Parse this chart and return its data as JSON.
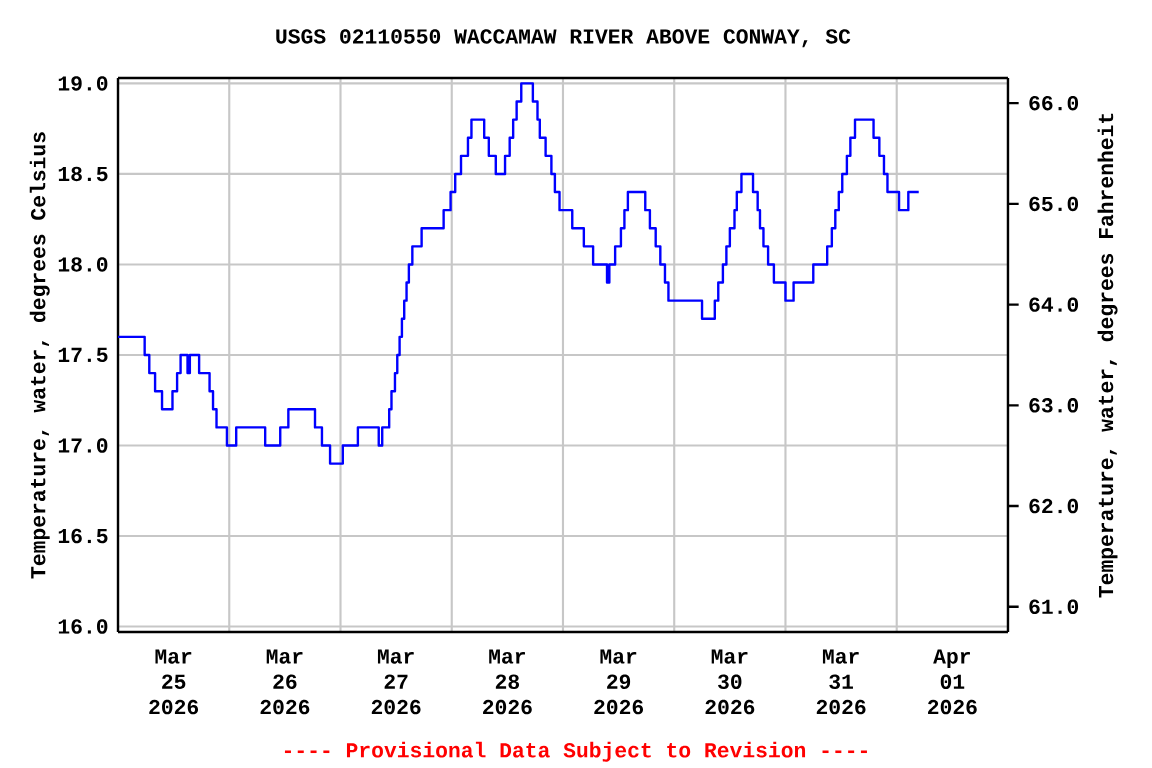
{
  "chart_data": {
    "type": "step",
    "title": "USGS 02110550 WACCAMAW RIVER ABOVE CONWAY, SC",
    "ylabel": "Temperature, water, degrees Celsius",
    "y2label": "Temperature, water, degrees Fahrenheit",
    "annotations": [
      "---- Provisional Data Subject to Revision ----"
    ],
    "xlim": [
      "2026-03-25T00:00",
      "2026-04-02T00:00"
    ],
    "xticks": [
      {
        "value": "2026-03-25T00:00",
        "label": null
      },
      {
        "value": "2026-03-26T00:00",
        "label": null
      },
      {
        "value": "2026-03-27T00:00",
        "label": null
      },
      {
        "value": "2026-03-28T00:00",
        "label": null
      },
      {
        "value": "2026-03-29T00:00",
        "label": null
      },
      {
        "value": "2026-03-30T00:00",
        "label": null
      },
      {
        "value": "2026-03-31T00:00",
        "label": null
      },
      {
        "value": "2026-04-01T00:00",
        "label": null
      },
      {
        "value": "2026-04-02T00:00",
        "label": null
      },
      {
        "value": "2026-03-25T12:00",
        "label": "Mar 25 2026"
      },
      {
        "value": "2026-03-26T12:00",
        "label": "Mar 26 2026"
      },
      {
        "value": "2026-03-27T12:00",
        "label": "Mar 27 2026"
      },
      {
        "value": "2026-03-28T12:00",
        "label": "Mar 28 2026"
      },
      {
        "value": "2026-03-29T12:00",
        "label": "Mar 29 2026"
      },
      {
        "value": "2026-03-30T12:00",
        "label": "Mar 30 2026"
      },
      {
        "value": "2026-03-31T12:00",
        "label": "Mar 31 2026"
      },
      {
        "value": "2026-04-01T12:00",
        "label": "Apr 01 2026"
      }
    ],
    "ylim": [
      15.97,
      19.03
    ],
    "yticks": [
      {
        "value": 16,
        "label": "16.0"
      },
      {
        "value": 16.5,
        "label": "16.5"
      },
      {
        "value": 17,
        "label": "17.0"
      },
      {
        "value": 17.5,
        "label": "17.5"
      },
      {
        "value": 18,
        "label": "18.0"
      },
      {
        "value": 18.5,
        "label": "18.5"
      },
      {
        "value": 19,
        "label": "19.0"
      }
    ],
    "y2lim": [
      60.75,
      66.25
    ],
    "y2ticks": [
      {
        "value": 61,
        "label": "61.0"
      },
      {
        "value": 62,
        "label": "62.0"
      },
      {
        "value": 63,
        "label": "63.0"
      },
      {
        "value": 64,
        "label": "64.0"
      },
      {
        "value": 65,
        "label": "65.0"
      },
      {
        "value": 66,
        "label": "66.0"
      }
    ],
    "grid": true,
    "marker": "none",
    "line_style": "solid",
    "series": [
      {
        "color": "#0000ff",
        "x": [
          "2026-03-25T00:00",
          "2026-03-25T05:45",
          "2026-03-25T06:45",
          "2026-03-25T08:00",
          "2026-03-25T09:30",
          "2026-03-25T11:45",
          "2026-03-25T12:45",
          "2026-03-25T13:30",
          "2026-03-25T15:00",
          "2026-03-25T15:30",
          "2026-03-25T17:30",
          "2026-03-25T19:45",
          "2026-03-25T20:30",
          "2026-03-25T21:15",
          "2026-03-25T23:30",
          "2026-03-26T01:30",
          "2026-03-26T07:45",
          "2026-03-26T11:00",
          "2026-03-26T12:45",
          "2026-03-26T18:30",
          "2026-03-26T20:00",
          "2026-03-26T21:45",
          "2026-03-27T00:30",
          "2026-03-27T03:45",
          "2026-03-27T08:15",
          "2026-03-27T09:00",
          "2026-03-27T10:30",
          "2026-03-27T11:00",
          "2026-03-27T11:45",
          "2026-03-27T12:15",
          "2026-03-27T12:45",
          "2026-03-27T13:15",
          "2026-03-27T13:45",
          "2026-03-27T14:15",
          "2026-03-27T14:45",
          "2026-03-27T15:30",
          "2026-03-27T17:30",
          "2026-03-27T22:15",
          "2026-03-27T23:45",
          "2026-03-28T00:45",
          "2026-03-28T02:00",
          "2026-03-28T03:30",
          "2026-03-28T04:15",
          "2026-03-28T07:00",
          "2026-03-28T08:00",
          "2026-03-28T09:30",
          "2026-03-28T11:30",
          "2026-03-28T12:30",
          "2026-03-28T13:15",
          "2026-03-28T14:00",
          "2026-03-28T15:00",
          "2026-03-28T17:30",
          "2026-03-28T18:30",
          "2026-03-28T19:00",
          "2026-03-28T20:15",
          "2026-03-28T21:30",
          "2026-03-28T22:15",
          "2026-03-28T23:15",
          "2026-03-29T02:00",
          "2026-03-29T04:30",
          "2026-03-29T06:30",
          "2026-03-29T09:30",
          "2026-03-29T10:00",
          "2026-03-29T11:15",
          "2026-03-29T12:30",
          "2026-03-29T13:15",
          "2026-03-29T14:00",
          "2026-03-29T17:45",
          "2026-03-29T18:45",
          "2026-03-29T20:00",
          "2026-03-29T21:00",
          "2026-03-29T22:00",
          "2026-03-29T22:45",
          "2026-03-30T06:00",
          "2026-03-30T08:45",
          "2026-03-30T09:30",
          "2026-03-30T10:30",
          "2026-03-30T11:15",
          "2026-03-30T12:00",
          "2026-03-30T13:00",
          "2026-03-30T13:30",
          "2026-03-30T14:30",
          "2026-03-30T17:00",
          "2026-03-30T18:00",
          "2026-03-30T18:30",
          "2026-03-30T19:15",
          "2026-03-30T20:15",
          "2026-03-30T21:30",
          "2026-03-31T00:00",
          "2026-03-31T01:45",
          "2026-03-31T06:00",
          "2026-03-31T09:00",
          "2026-03-31T10:00",
          "2026-03-31T10:45",
          "2026-03-31T11:30",
          "2026-03-31T12:15",
          "2026-03-31T13:15",
          "2026-03-31T14:00",
          "2026-03-31T15:00",
          "2026-03-31T19:00",
          "2026-03-31T20:15",
          "2026-03-31T21:15",
          "2026-03-31T22:00",
          "2026-04-01T00:30",
          "2026-04-01T02:30",
          "2026-04-01T04:45"
        ],
        "values": [
          17.6,
          17.5,
          17.4,
          17.3,
          17.2,
          17.3,
          17.4,
          17.5,
          17.4,
          17.5,
          17.4,
          17.3,
          17.2,
          17.1,
          17.0,
          17.1,
          17.0,
          17.1,
          17.2,
          17.1,
          17.0,
          16.9,
          17.0,
          17.1,
          17.0,
          17.1,
          17.2,
          17.3,
          17.4,
          17.5,
          17.6,
          17.7,
          17.8,
          17.9,
          18.0,
          18.1,
          18.2,
          18.3,
          18.4,
          18.5,
          18.6,
          18.7,
          18.8,
          18.7,
          18.6,
          18.5,
          18.6,
          18.7,
          18.8,
          18.9,
          19.0,
          18.9,
          18.8,
          18.7,
          18.6,
          18.5,
          18.4,
          18.3,
          18.2,
          18.1,
          18.0,
          17.9,
          18.0,
          18.1,
          18.2,
          18.3,
          18.4,
          18.3,
          18.2,
          18.1,
          18.0,
          17.9,
          17.8,
          17.7,
          17.8,
          17.9,
          18.0,
          18.1,
          18.2,
          18.3,
          18.4,
          18.5,
          18.4,
          18.3,
          18.2,
          18.1,
          18.0,
          17.9,
          17.8,
          17.9,
          18.0,
          18.1,
          18.2,
          18.3,
          18.4,
          18.5,
          18.6,
          18.7,
          18.8,
          18.7,
          18.6,
          18.5,
          18.4,
          18.3,
          18.4,
          18.4
        ]
      }
    ]
  }
}
